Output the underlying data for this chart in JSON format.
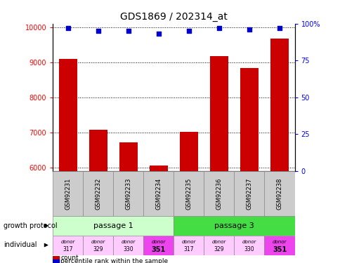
{
  "title": "GDS1869 / 202314_at",
  "samples": [
    "GSM92231",
    "GSM92232",
    "GSM92233",
    "GSM92234",
    "GSM92235",
    "GSM92236",
    "GSM92237",
    "GSM92238"
  ],
  "counts": [
    9100,
    7080,
    6720,
    6060,
    7020,
    9180,
    8840,
    9680
  ],
  "percentiles": [
    97,
    95,
    95,
    93,
    95,
    97,
    96,
    97
  ],
  "ylim_left": [
    5900,
    10100
  ],
  "ylim_right": [
    0,
    100
  ],
  "yticks_left": [
    6000,
    7000,
    8000,
    9000,
    10000
  ],
  "yticks_right": [
    0,
    25,
    50,
    75,
    100
  ],
  "passage_groups": [
    {
      "label": "passage 1",
      "indices": [
        0,
        1,
        2,
        3
      ],
      "color": "#ccffcc"
    },
    {
      "label": "passage 3",
      "indices": [
        4,
        5,
        6,
        7
      ],
      "color": "#44dd44"
    }
  ],
  "individuals": [
    "donor\n317",
    "donor\n329",
    "donor\n330",
    "donor\n351",
    "donor\n317",
    "donor\n329",
    "donor\n330",
    "donor\n351"
  ],
  "individual_colors": [
    "#ffccff",
    "#ffccff",
    "#ffccff",
    "#ee44ee",
    "#ffccff",
    "#ffccff",
    "#ffccff",
    "#ee44ee"
  ],
  "bar_color": "#cc0000",
  "dot_color": "#0000cc",
  "sample_box_color": "#cccccc",
  "bar_width": 0.6
}
